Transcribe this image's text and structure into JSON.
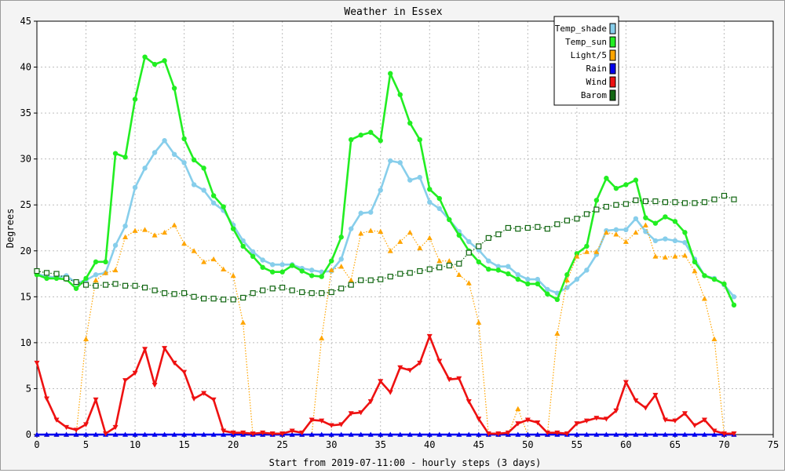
{
  "chart_data": {
    "type": "line",
    "title": "Weather in Essex",
    "xlabel": "Start from 2019-07-11:00 - hourly steps (3 days)",
    "ylabel": "Degrees",
    "xlim": [
      0,
      75
    ],
    "ylim": [
      0,
      45
    ],
    "x_ticks": [
      0,
      5,
      10,
      15,
      20,
      25,
      30,
      35,
      40,
      45,
      50,
      55,
      60,
      65,
      70,
      75
    ],
    "y_ticks": [
      0,
      5,
      10,
      15,
      20,
      25,
      30,
      35,
      40,
      45
    ],
    "grid": true,
    "legend_position": "top-right",
    "x": [
      0,
      1,
      2,
      3,
      4,
      5,
      6,
      7,
      8,
      9,
      10,
      11,
      12,
      13,
      14,
      15,
      16,
      17,
      18,
      19,
      20,
      21,
      22,
      23,
      24,
      25,
      26,
      27,
      28,
      29,
      30,
      31,
      32,
      33,
      34,
      35,
      36,
      37,
      38,
      39,
      40,
      41,
      42,
      43,
      44,
      45,
      46,
      47,
      48,
      49,
      50,
      51,
      52,
      53,
      54,
      55,
      56,
      57,
      58,
      59,
      60,
      61,
      62,
      63,
      64,
      65,
      66,
      67,
      68,
      69,
      70,
      71
    ],
    "series": [
      {
        "name": "Temp_shade",
        "color": "#87ceeb",
        "marker": "circle",
        "line_style": "solid",
        "values": [
          17.5,
          17.2,
          17.1,
          17.3,
          16.5,
          16.8,
          17.4,
          17.6,
          20.6,
          22.7,
          26.9,
          29.0,
          30.7,
          32.0,
          30.5,
          29.6,
          27.2,
          26.6,
          25.2,
          24.4,
          22.8,
          21.1,
          19.9,
          19.0,
          18.5,
          18.5,
          18.5,
          18.1,
          17.9,
          17.7,
          17.8,
          19.1,
          22.4,
          24.1,
          24.2,
          26.6,
          29.8,
          29.6,
          27.7,
          28.0,
          25.3,
          24.6,
          23.4,
          22.1,
          21.0,
          20.1,
          18.9,
          18.3,
          18.3,
          17.4,
          16.9,
          16.9,
          15.8,
          15.4,
          16.0,
          16.9,
          17.9,
          19.6,
          22.2,
          22.3,
          22.3,
          23.5,
          22.1,
          21.1,
          21.3,
          21.1,
          20.9,
          19.1,
          17.3,
          17.0,
          16.3,
          15.0
        ]
      },
      {
        "name": "Temp_sun",
        "color": "#22ee22",
        "marker": "circle",
        "line_style": "solid",
        "values": [
          17.4,
          17.0,
          17.0,
          16.9,
          15.9,
          17.0,
          18.8,
          18.8,
          30.6,
          30.2,
          36.5,
          41.1,
          40.3,
          40.7,
          37.7,
          32.2,
          29.9,
          29.0,
          26.0,
          24.8,
          22.4,
          20.5,
          19.4,
          18.2,
          17.7,
          17.7,
          18.4,
          17.8,
          17.3,
          17.2,
          18.9,
          21.5,
          32.1,
          32.6,
          32.9,
          32.0,
          39.3,
          37.0,
          33.9,
          32.1,
          26.7,
          25.7,
          23.4,
          21.7,
          20.0,
          18.8,
          18.0,
          17.9,
          17.5,
          16.9,
          16.4,
          16.4,
          15.3,
          14.7,
          17.4,
          19.7,
          20.5,
          25.5,
          27.9,
          26.8,
          27.2,
          27.7,
          23.6,
          23.0,
          23.7,
          23.2,
          22.0,
          18.8,
          17.3,
          16.9,
          16.4,
          14.1
        ]
      },
      {
        "name": "Light/5",
        "color": "#ffa500",
        "marker": "triangle-up",
        "line_style": "dotted",
        "values": [
          0,
          0,
          0,
          0,
          0,
          10.4,
          16.8,
          17.6,
          17.9,
          21.5,
          22.2,
          22.3,
          21.7,
          22.0,
          22.8,
          20.8,
          20.0,
          18.8,
          19.1,
          18.0,
          17.3,
          12.2,
          0,
          0,
          0,
          0,
          0,
          0,
          0,
          10.5,
          17.9,
          18.3,
          16.8,
          21.9,
          22.2,
          22.1,
          20.0,
          21.0,
          22.0,
          20.3,
          21.4,
          18.9,
          18.9,
          17.4,
          16.5,
          12.2,
          0,
          0,
          0,
          2.8,
          0,
          0,
          0,
          11.0,
          16.8,
          19.4,
          19.9,
          19.9,
          22.0,
          21.8,
          21.0,
          22.0,
          22.8,
          19.4,
          19.3,
          19.4,
          19.5,
          17.8,
          14.8,
          10.4,
          0,
          0
        ]
      },
      {
        "name": "Rain",
        "color": "#0000ee",
        "marker": "triangle-up",
        "line_style": "solid",
        "values": [
          0,
          0,
          0,
          0,
          0,
          0,
          0,
          0,
          0,
          0,
          0,
          0,
          0,
          0,
          0,
          0,
          0,
          0,
          0,
          0,
          0,
          0,
          0,
          0,
          0,
          0,
          0,
          0,
          0,
          0,
          0,
          0,
          0,
          0,
          0,
          0,
          0,
          0,
          0,
          0,
          0,
          0,
          0,
          0,
          0,
          0,
          0,
          0,
          0,
          0,
          0,
          0,
          0,
          0,
          0,
          0,
          0,
          0,
          0,
          0,
          0,
          0,
          0,
          0,
          0,
          0,
          0,
          0,
          0,
          0,
          0,
          0
        ]
      },
      {
        "name": "Wind",
        "color": "#ee1111",
        "marker": "triangle-down",
        "line_style": "solid",
        "values": [
          7.8,
          3.9,
          1.6,
          0.8,
          0.5,
          1.1,
          3.8,
          0.1,
          0.8,
          5.9,
          6.7,
          9.3,
          5.4,
          9.4,
          7.8,
          6.8,
          3.9,
          4.5,
          3.8,
          0.4,
          0.2,
          0.2,
          0.1,
          0.2,
          0.1,
          0.1,
          0.4,
          0.2,
          1.6,
          1.5,
          1.0,
          1.1,
          2.3,
          2.4,
          3.6,
          5.8,
          4.6,
          7.3,
          7.0,
          7.8,
          10.7,
          8.0,
          6.0,
          6.1,
          3.6,
          1.7,
          0.1,
          0.1,
          0.2,
          1.2,
          1.6,
          1.3,
          0.2,
          0.2,
          0.1,
          1.2,
          1.5,
          1.8,
          1.7,
          2.6,
          5.7,
          3.7,
          2.9,
          4.3,
          1.6,
          1.5,
          2.3,
          1.0,
          1.6,
          0.4,
          0.1,
          0.1
        ]
      },
      {
        "name": "Barom",
        "color": "#116611",
        "marker": "square",
        "line_style": "dotted",
        "values": [
          17.8,
          17.6,
          17.5,
          17.0,
          16.6,
          16.3,
          16.2,
          16.3,
          16.4,
          16.2,
          16.2,
          16.0,
          15.7,
          15.4,
          15.3,
          15.4,
          15.0,
          14.8,
          14.8,
          14.7,
          14.7,
          14.9,
          15.4,
          15.7,
          15.9,
          16.0,
          15.7,
          15.5,
          15.4,
          15.4,
          15.5,
          15.9,
          16.3,
          16.8,
          16.8,
          16.9,
          17.2,
          17.5,
          17.6,
          17.8,
          18.0,
          18.2,
          18.4,
          18.6,
          19.8,
          20.5,
          21.4,
          21.8,
          22.5,
          22.4,
          22.5,
          22.6,
          22.4,
          22.9,
          23.3,
          23.5,
          24.0,
          24.5,
          24.8,
          25.0,
          25.1,
          25.5,
          25.4,
          25.4,
          25.3,
          25.3,
          25.2,
          25.2,
          25.3,
          25.6,
          26.0,
          25.6
        ]
      }
    ]
  }
}
